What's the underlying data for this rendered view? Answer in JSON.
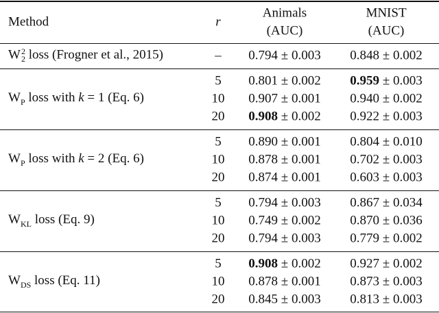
{
  "table": {
    "header": {
      "method": "Method",
      "r": "r",
      "animals": [
        "Animals",
        "(AUC)"
      ],
      "mnist": [
        "MNIST",
        "(AUC)"
      ]
    },
    "groups": [
      {
        "method": [
          {
            "text": "W"
          },
          {
            "sup": "2",
            "sub": "2"
          },
          {
            "text": " loss (Frogner et al., 2015)"
          }
        ],
        "rows": [
          {
            "r": "–",
            "animals": {
              "main": "0.794",
              "rest": " ± 0.003"
            },
            "mnist": {
              "main": "0.848",
              "rest": " ± 0.002"
            }
          }
        ]
      },
      {
        "method": [
          {
            "text": "W"
          },
          {
            "sub": "P"
          },
          {
            "text": " loss with "
          },
          {
            "italic": "k"
          },
          {
            "text": " = 1 (Eq. 6)"
          }
        ],
        "rows": [
          {
            "r": "5",
            "animals": {
              "main": "0.801",
              "rest": " ± 0.002"
            },
            "mnist": {
              "main": "0.959",
              "rest": " ± 0.003",
              "bold": true
            }
          },
          {
            "r": "10",
            "animals": {
              "main": "0.907",
              "rest": " ± 0.001"
            },
            "mnist": {
              "main": "0.940",
              "rest": " ± 0.002"
            }
          },
          {
            "r": "20",
            "animals": {
              "main": "0.908",
              "rest": " ± 0.002",
              "bold": true
            },
            "mnist": {
              "main": "0.922",
              "rest": " ± 0.003"
            }
          }
        ]
      },
      {
        "method": [
          {
            "text": "W"
          },
          {
            "sub": "P"
          },
          {
            "text": " loss with "
          },
          {
            "italic": "k"
          },
          {
            "text": " = 2 (Eq. 6)"
          }
        ],
        "rows": [
          {
            "r": "5",
            "animals": {
              "main": "0.890",
              "rest": " ± 0.001"
            },
            "mnist": {
              "main": "0.804",
              "rest": " ± 0.010"
            }
          },
          {
            "r": "10",
            "animals": {
              "main": "0.878",
              "rest": " ± 0.001"
            },
            "mnist": {
              "main": "0.702",
              "rest": " ± 0.003"
            }
          },
          {
            "r": "20",
            "animals": {
              "main": "0.874",
              "rest": " ± 0.001"
            },
            "mnist": {
              "main": "0.603",
              "rest": " ± 0.003"
            }
          }
        ]
      },
      {
        "method": [
          {
            "text": "W"
          },
          {
            "sub": "KL"
          },
          {
            "text": " loss (Eq. 9)"
          }
        ],
        "rows": [
          {
            "r": "5",
            "animals": {
              "main": "0.794",
              "rest": " ± 0.003"
            },
            "mnist": {
              "main": "0.867",
              "rest": " ± 0.034"
            }
          },
          {
            "r": "10",
            "animals": {
              "main": "0.749",
              "rest": " ± 0.002"
            },
            "mnist": {
              "main": "0.870",
              "rest": " ± 0.036"
            }
          },
          {
            "r": "20",
            "animals": {
              "main": "0.794",
              "rest": " ± 0.003"
            },
            "mnist": {
              "main": "0.779",
              "rest": " ± 0.002"
            }
          }
        ]
      },
      {
        "method": [
          {
            "text": "W"
          },
          {
            "sub": "DS"
          },
          {
            "text": " loss (Eq. 11)"
          }
        ],
        "rows": [
          {
            "r": "5",
            "animals": {
              "main": "0.908",
              "rest": " ± 0.002",
              "bold": true
            },
            "mnist": {
              "main": "0.927",
              "rest": " ± 0.002"
            }
          },
          {
            "r": "10",
            "animals": {
              "main": "0.878",
              "rest": " ± 0.001"
            },
            "mnist": {
              "main": "0.873",
              "rest": " ± 0.003"
            }
          },
          {
            "r": "20",
            "animals": {
              "main": "0.845",
              "rest": " ± 0.003"
            },
            "mnist": {
              "main": "0.813",
              "rest": " ± 0.003"
            }
          }
        ]
      }
    ]
  }
}
